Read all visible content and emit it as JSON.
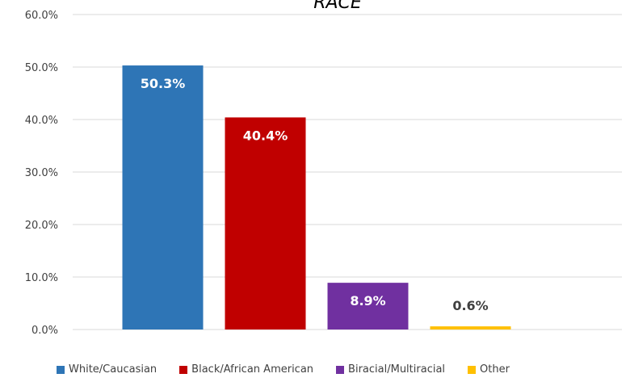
{
  "chart_data": {
    "type": "bar",
    "title": "RACE",
    "categories": [
      "White/Caucasian",
      "Black/African American",
      "Biracial/Multiracial",
      "Other"
    ],
    "values": [
      50.3,
      40.4,
      8.9,
      0.6
    ],
    "data_labels": [
      "50.3%",
      "40.4%",
      "8.9%",
      "0.6%"
    ],
    "colors": [
      "#2e75b6",
      "#c00000",
      "#7030a0",
      "#ffc000"
    ],
    "label_colors": [
      "#ffffff",
      "#ffffff",
      "#ffffff",
      "#404040"
    ],
    "ylim": [
      0,
      60
    ],
    "yticks": [
      0,
      10,
      20,
      30,
      40,
      50,
      60
    ],
    "ytick_labels": [
      "0.0%",
      "10.0%",
      "20.0%",
      "30.0%",
      "40.0%",
      "50.0%",
      "60.0%"
    ],
    "grid": true,
    "legend_position": "bottom"
  }
}
